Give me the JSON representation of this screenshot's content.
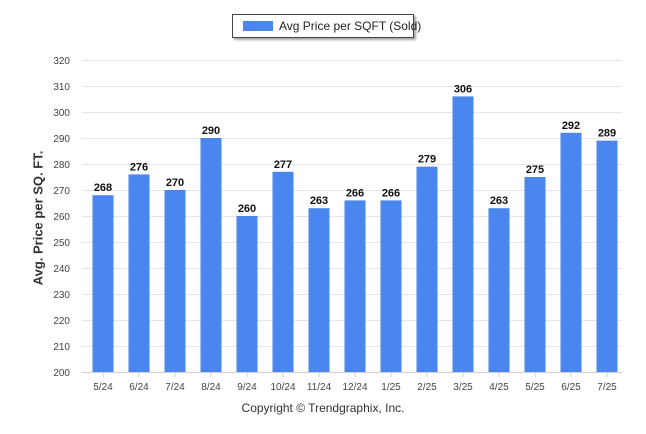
{
  "chart_data": {
    "type": "bar",
    "categories": [
      "5/24",
      "6/24",
      "7/24",
      "8/24",
      "9/24",
      "10/24",
      "11/24",
      "12/24",
      "1/25",
      "2/25",
      "3/25",
      "4/25",
      "5/25",
      "6/25",
      "7/25"
    ],
    "series": [
      {
        "name": "Avg Price per SQFT (Sold)",
        "values": [
          268,
          276,
          270,
          290,
          260,
          277,
          263,
          266,
          266,
          279,
          306,
          263,
          275,
          292,
          289
        ]
      }
    ],
    "ylabel": "Avg. Price per SQ. FT.",
    "xlabel": "",
    "ylim": [
      200,
      320
    ],
    "yticks": [
      200,
      210,
      220,
      230,
      240,
      250,
      260,
      270,
      280,
      290,
      300,
      310,
      320
    ],
    "grid": true,
    "legend_position": "top-center",
    "bar_color": "#4a86f0"
  },
  "footer": {
    "copyright": "Copyright © Trendgraphix, Inc."
  }
}
